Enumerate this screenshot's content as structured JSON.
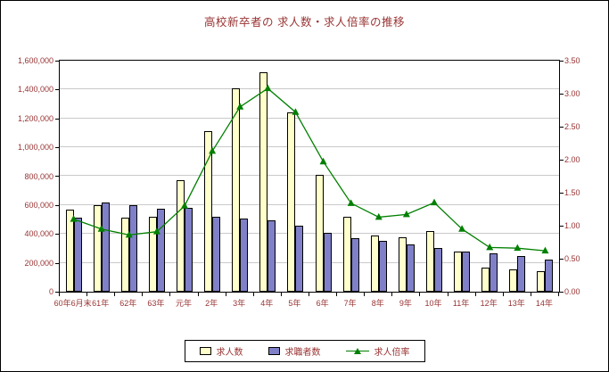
{
  "chart_data": {
    "type": "bar+line",
    "title": "高校新卒者の 求人数・求人倍率の推移",
    "categories": [
      "60年6月末",
      "61年",
      "62年",
      "63年",
      "元年",
      "2年",
      "3年",
      "4年",
      "5年",
      "6年",
      "7年",
      "8年",
      "9年",
      "10年",
      "11年",
      "12年",
      "13年",
      "14年"
    ],
    "series": [
      {
        "name": "求人数",
        "type": "bar",
        "axis": "left",
        "color": "#FFFFCC",
        "values": [
          570000,
          600000,
          515000,
          520000,
          770000,
          1110000,
          1410000,
          1520000,
          1240000,
          810000,
          520000,
          390000,
          375000,
          420000,
          280000,
          165000,
          155000,
          140000
        ]
      },
      {
        "name": "求職者数",
        "type": "bar",
        "axis": "left",
        "color": "#8080C8",
        "values": [
          510000,
          620000,
          600000,
          575000,
          580000,
          520000,
          505000,
          495000,
          460000,
          410000,
          370000,
          350000,
          330000,
          305000,
          280000,
          265000,
          250000,
          225000
        ]
      },
      {
        "name": "求人倍率",
        "type": "line",
        "axis": "right",
        "color": "#008000",
        "values": [
          1.1,
          0.95,
          0.86,
          0.91,
          1.3,
          2.13,
          2.8,
          3.08,
          2.72,
          1.97,
          1.34,
          1.13,
          1.17,
          1.35,
          0.95,
          0.67,
          0.66,
          0.62
        ]
      }
    ],
    "left_axis": {
      "min": 0,
      "max": 1600000,
      "step": 200000,
      "labels": [
        "0",
        "200,000",
        "400,000",
        "600,000",
        "800,000",
        "1,000,000",
        "1,200,000",
        "1,400,000",
        "1,600,000"
      ]
    },
    "right_axis": {
      "min": 0,
      "max": 3.5,
      "step": 0.5,
      "labels": [
        "0.00",
        "0.50",
        "1.00",
        "1.50",
        "2.00",
        "2.50",
        "3.00",
        "3.50"
      ]
    },
    "grid": true,
    "legend_position": "bottom",
    "legend": [
      "求人数",
      "求職者数",
      "求人倍率"
    ]
  },
  "colors": {
    "text": "#993333",
    "grid": "#C9C9C9",
    "axis_border": "#000000",
    "background": "#FFFFFF",
    "bar_job_openings": "#FFFFCC",
    "bar_job_seekers": "#8080C8",
    "line_ratio": "#008000"
  }
}
